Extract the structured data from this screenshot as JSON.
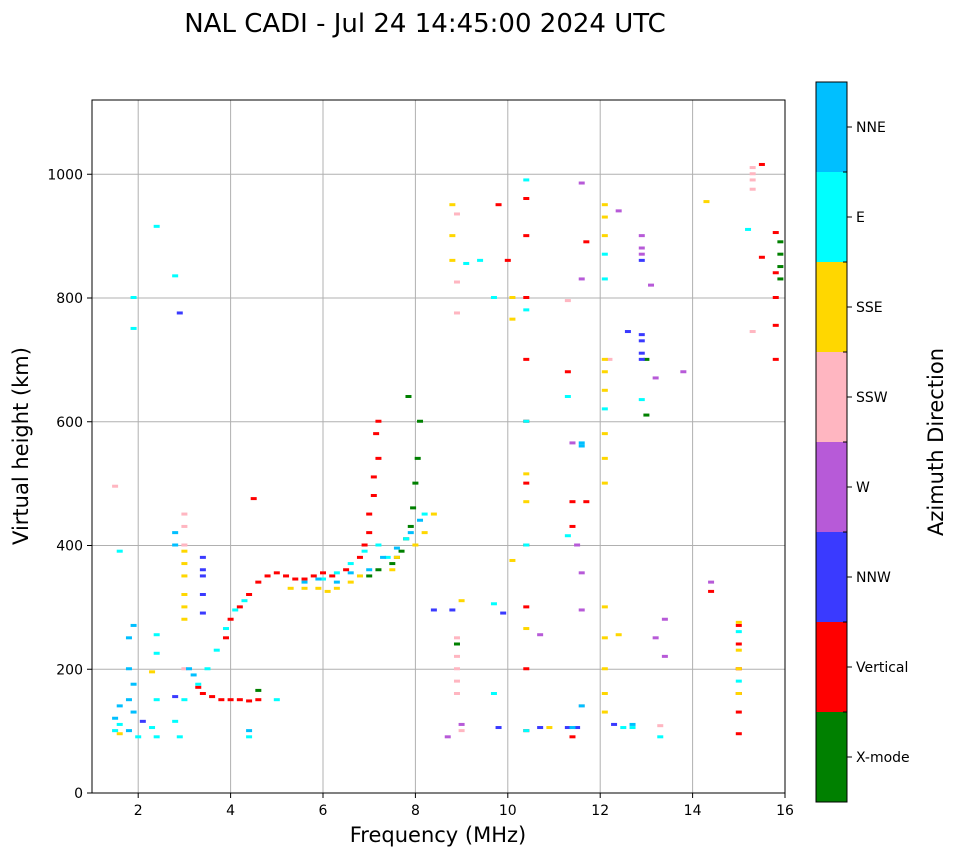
{
  "chart_data": {
    "type": "scatter",
    "title": "NAL CADI - Jul 24 14:45:00 2024 UTC",
    "xlabel": "Frequency (MHz)",
    "ylabel": "Virtual height (km)",
    "xlim": [
      1,
      16
    ],
    "ylim": [
      0,
      1120
    ],
    "xticks": [
      2,
      4,
      6,
      8,
      10,
      12,
      14,
      16
    ],
    "yticks": [
      0,
      200,
      400,
      600,
      800,
      1000
    ],
    "grid": true,
    "colorbar": {
      "label": "Azimuth Direction",
      "categories": [
        {
          "name": "X-mode",
          "color": "#008000"
        },
        {
          "name": "Vertical",
          "color": "#ff0000"
        },
        {
          "name": "NNW",
          "color": "#3a3aff"
        },
        {
          "name": "W",
          "color": "#b75ad8"
        },
        {
          "name": "SSW",
          "color": "#ffb6c1"
        },
        {
          "name": "SSE",
          "color": "#ffd700"
        },
        {
          "name": "E",
          "color": "#00ffff"
        },
        {
          "name": "NNE",
          "color": "#00bfff"
        }
      ]
    },
    "series": [
      {
        "name": "X-mode",
        "points": [
          [
            7.7,
            390
          ],
          [
            7.8,
            410
          ],
          [
            7.9,
            430
          ],
          [
            7.95,
            460
          ],
          [
            8.0,
            500
          ],
          [
            8.05,
            540
          ],
          [
            8.1,
            600
          ],
          [
            7.85,
            640
          ],
          [
            7.5,
            370
          ],
          [
            7.6,
            380
          ],
          [
            7.2,
            360
          ],
          [
            7.0,
            350
          ],
          [
            4.6,
            165
          ],
          [
            15.9,
            870
          ],
          [
            15.9,
            890
          ],
          [
            15.9,
            850
          ],
          [
            15.9,
            830
          ],
          [
            13.0,
            610
          ],
          [
            13.0,
            700
          ],
          [
            8.9,
            240
          ]
        ]
      },
      {
        "name": "Vertical",
        "points": [
          [
            3.4,
            160
          ],
          [
            3.6,
            155
          ],
          [
            3.8,
            150
          ],
          [
            4.0,
            150
          ],
          [
            4.2,
            150
          ],
          [
            4.4,
            148
          ],
          [
            4.6,
            150
          ],
          [
            3.3,
            170
          ],
          [
            3.9,
            250
          ],
          [
            4.0,
            280
          ],
          [
            4.2,
            300
          ],
          [
            4.4,
            320
          ],
          [
            4.6,
            340
          ],
          [
            4.8,
            350
          ],
          [
            5.0,
            355
          ],
          [
            5.2,
            350
          ],
          [
            5.4,
            345
          ],
          [
            5.6,
            345
          ],
          [
            5.8,
            350
          ],
          [
            6.0,
            355
          ],
          [
            6.2,
            350
          ],
          [
            6.5,
            360
          ],
          [
            6.8,
            380
          ],
          [
            6.9,
            400
          ],
          [
            7.0,
            420
          ],
          [
            7.0,
            450
          ],
          [
            7.1,
            480
          ],
          [
            7.1,
            510
          ],
          [
            7.2,
            540
          ],
          [
            7.15,
            580
          ],
          [
            7.2,
            600
          ],
          [
            4.5,
            475
          ],
          [
            10.4,
            100
          ],
          [
            10.4,
            200
          ],
          [
            10.4,
            300
          ],
          [
            10.4,
            400
          ],
          [
            10.4,
            500
          ],
          [
            10.4,
            600
          ],
          [
            10.4,
            700
          ],
          [
            10.4,
            800
          ],
          [
            10.4,
            900
          ],
          [
            10.4,
            960
          ],
          [
            10.0,
            860
          ],
          [
            9.8,
            950
          ],
          [
            11.4,
            430
          ],
          [
            11.4,
            470
          ],
          [
            11.3,
            680
          ],
          [
            11.7,
            890
          ],
          [
            11.7,
            470
          ],
          [
            11.4,
            90
          ],
          [
            14.4,
            325
          ],
          [
            15.0,
            95
          ],
          [
            15.0,
            130
          ],
          [
            15.0,
            160
          ],
          [
            15.0,
            200
          ],
          [
            15.0,
            240
          ],
          [
            15.0,
            270
          ],
          [
            15.8,
            700
          ],
          [
            15.8,
            755
          ],
          [
            15.8,
            800
          ],
          [
            15.8,
            840
          ],
          [
            15.8,
            905
          ],
          [
            15.5,
            865
          ],
          [
            15.5,
            1015
          ]
        ]
      },
      {
        "name": "NNW",
        "points": [
          [
            3.4,
            380
          ],
          [
            3.4,
            350
          ],
          [
            3.4,
            320
          ],
          [
            3.4,
            290
          ],
          [
            3.4,
            360
          ],
          [
            2.8,
            155
          ],
          [
            10.7,
            105
          ],
          [
            11.3,
            105
          ],
          [
            11.5,
            105
          ],
          [
            12.9,
            700
          ],
          [
            12.9,
            710
          ],
          [
            12.9,
            730
          ],
          [
            12.9,
            740
          ],
          [
            12.9,
            860
          ],
          [
            12.6,
            745
          ],
          [
            12.3,
            110
          ],
          [
            8.4,
            295
          ],
          [
            8.8,
            295
          ],
          [
            9.8,
            105
          ],
          [
            9.9,
            290
          ],
          [
            2.1,
            115
          ],
          [
            2.9,
            775
          ]
        ]
      },
      {
        "name": "W",
        "points": [
          [
            12.9,
            900
          ],
          [
            12.9,
            880
          ],
          [
            12.9,
            870
          ],
          [
            13.1,
            820
          ],
          [
            13.2,
            670
          ],
          [
            13.2,
            250
          ],
          [
            13.4,
            280
          ],
          [
            13.4,
            220
          ],
          [
            13.8,
            680
          ],
          [
            14.4,
            340
          ],
          [
            12.4,
            940
          ],
          [
            11.6,
            985
          ],
          [
            11.6,
            830
          ],
          [
            11.6,
            355
          ],
          [
            11.6,
            295
          ],
          [
            11.4,
            565
          ],
          [
            11.5,
            400
          ],
          [
            10.7,
            255
          ],
          [
            8.7,
            90
          ],
          [
            9.0,
            110
          ]
        ]
      },
      {
        "name": "SSW",
        "points": [
          [
            3.0,
            400
          ],
          [
            3.0,
            430
          ],
          [
            3.0,
            450
          ],
          [
            3.0,
            200
          ],
          [
            8.9,
            160
          ],
          [
            8.9,
            180
          ],
          [
            8.9,
            200
          ],
          [
            8.9,
            220
          ],
          [
            8.9,
            250
          ],
          [
            8.9,
            775
          ],
          [
            8.9,
            825
          ],
          [
            8.9,
            935
          ],
          [
            9.0,
            100
          ],
          [
            15.3,
            975
          ],
          [
            15.3,
            990
          ],
          [
            15.3,
            1000
          ],
          [
            15.3,
            745
          ],
          [
            15.3,
            1010
          ],
          [
            13.3,
            108
          ],
          [
            12.2,
            700
          ],
          [
            11.3,
            795
          ],
          [
            11.6,
            140
          ],
          [
            1.5,
            100
          ],
          [
            1.5,
            495
          ]
        ]
      },
      {
        "name": "SSE",
        "points": [
          [
            3.0,
            320
          ],
          [
            3.0,
            350
          ],
          [
            3.0,
            370
          ],
          [
            3.0,
            390
          ],
          [
            3.0,
            280
          ],
          [
            3.0,
            300
          ],
          [
            5.3,
            330
          ],
          [
            5.6,
            330
          ],
          [
            5.9,
            330
          ],
          [
            6.1,
            325
          ],
          [
            6.3,
            330
          ],
          [
            6.6,
            340
          ],
          [
            6.8,
            350
          ],
          [
            7.5,
            360
          ],
          [
            7.6,
            380
          ],
          [
            8.0,
            400
          ],
          [
            8.2,
            420
          ],
          [
            8.4,
            450
          ],
          [
            12.1,
            500
          ],
          [
            12.1,
            540
          ],
          [
            12.1,
            580
          ],
          [
            12.1,
            650
          ],
          [
            12.1,
            680
          ],
          [
            12.1,
            700
          ],
          [
            12.1,
            900
          ],
          [
            12.1,
            930
          ],
          [
            12.1,
            950
          ],
          [
            12.1,
            300
          ],
          [
            12.1,
            250
          ],
          [
            12.1,
            200
          ],
          [
            12.1,
            160
          ],
          [
            12.1,
            130
          ],
          [
            12.4,
            255
          ],
          [
            10.1,
            375
          ],
          [
            10.1,
            765
          ],
          [
            10.1,
            800
          ],
          [
            10.4,
            265
          ],
          [
            10.4,
            515
          ],
          [
            10.4,
            470
          ],
          [
            8.8,
            950
          ],
          [
            8.8,
            900
          ],
          [
            8.8,
            860
          ],
          [
            9.0,
            310
          ],
          [
            10.9,
            105
          ],
          [
            14.3,
            955
          ],
          [
            15.0,
            160
          ],
          [
            15.0,
            200
          ],
          [
            15.0,
            230
          ],
          [
            15.0,
            275
          ],
          [
            2.3,
            195
          ],
          [
            1.6,
            95
          ]
        ]
      },
      {
        "name": "E",
        "points": [
          [
            1.5,
            100
          ],
          [
            1.6,
            110
          ],
          [
            2.0,
            90
          ],
          [
            2.3,
            105
          ],
          [
            2.4,
            90
          ],
          [
            2.4,
            150
          ],
          [
            2.4,
            225
          ],
          [
            2.4,
            255
          ],
          [
            2.8,
            115
          ],
          [
            2.9,
            90
          ],
          [
            3.0,
            150
          ],
          [
            3.3,
            175
          ],
          [
            3.5,
            200
          ],
          [
            3.7,
            230
          ],
          [
            3.9,
            265
          ],
          [
            4.1,
            295
          ],
          [
            4.3,
            310
          ],
          [
            4.4,
            90
          ],
          [
            5.0,
            150
          ],
          [
            6.0,
            345
          ],
          [
            6.3,
            355
          ],
          [
            6.6,
            370
          ],
          [
            6.9,
            390
          ],
          [
            7.2,
            400
          ],
          [
            7.4,
            380
          ],
          [
            7.8,
            410
          ],
          [
            8.2,
            450
          ],
          [
            1.9,
            750
          ],
          [
            1.9,
            800
          ],
          [
            2.8,
            835
          ],
          [
            2.4,
            915
          ],
          [
            1.6,
            390
          ],
          [
            9.1,
            855
          ],
          [
            9.4,
            860
          ],
          [
            9.7,
            800
          ],
          [
            10.4,
            990
          ],
          [
            10.4,
            780
          ],
          [
            10.4,
            600
          ],
          [
            10.4,
            400
          ],
          [
            10.4,
            100
          ],
          [
            11.3,
            640
          ],
          [
            11.3,
            415
          ],
          [
            12.1,
            830
          ],
          [
            12.1,
            870
          ],
          [
            12.1,
            620
          ],
          [
            12.5,
            105
          ],
          [
            12.7,
            105
          ],
          [
            12.9,
            635
          ],
          [
            13.3,
            90
          ],
          [
            15.2,
            910
          ],
          [
            15.0,
            180
          ],
          [
            15.0,
            260
          ],
          [
            9.7,
            160
          ],
          [
            9.7,
            305
          ]
        ]
      },
      {
        "name": "NNE",
        "points": [
          [
            1.5,
            120
          ],
          [
            1.8,
            100
          ],
          [
            1.8,
            150
          ],
          [
            1.8,
            200
          ],
          [
            1.8,
            250
          ],
          [
            1.9,
            270
          ],
          [
            1.9,
            130
          ],
          [
            1.9,
            175
          ],
          [
            2.8,
            400
          ],
          [
            2.8,
            420
          ],
          [
            3.1,
            200
          ],
          [
            3.2,
            190
          ],
          [
            4.4,
            100
          ],
          [
            5.6,
            340
          ],
          [
            5.9,
            345
          ],
          [
            6.3,
            340
          ],
          [
            6.6,
            355
          ],
          [
            7.0,
            360
          ],
          [
            7.3,
            380
          ],
          [
            7.6,
            395
          ],
          [
            7.9,
            420
          ],
          [
            8.1,
            440
          ],
          [
            11.4,
            105
          ],
          [
            11.6,
            565
          ],
          [
            11.6,
            560
          ],
          [
            11.6,
            140
          ],
          [
            12.7,
            110
          ],
          [
            1.6,
            140
          ]
        ]
      }
    ]
  }
}
